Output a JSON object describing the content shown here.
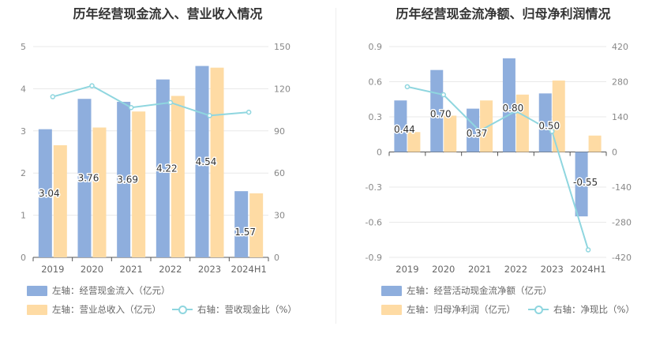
{
  "chart_data": [
    {
      "type": "bar",
      "title": "历年经营现金流入、营业收入情况",
      "categories": [
        "2019",
        "2020",
        "2021",
        "2022",
        "2023",
        "2024H1"
      ],
      "left_axis": {
        "min": 0,
        "max": 5,
        "ticks": [
          "0",
          "1",
          "2",
          "3",
          "4",
          "5"
        ]
      },
      "right_axis": {
        "min": 0,
        "max": 150,
        "ticks": [
          "0",
          "30",
          "60",
          "90",
          "120",
          "150"
        ]
      },
      "series": [
        {
          "name": "左轴：经营现金流入（亿元）",
          "axis": "left",
          "kind": "bar",
          "color": "#8eaedd",
          "values": [
            3.04,
            3.76,
            3.69,
            4.22,
            4.54,
            1.57
          ],
          "labels": [
            "3.04",
            "3.76",
            "3.69",
            "4.22",
            "4.54",
            "1.57"
          ]
        },
        {
          "name": "左轴：营业总收入（亿元）",
          "axis": "left",
          "kind": "bar",
          "color": "#fedba4",
          "values": [
            2.66,
            3.08,
            3.46,
            3.83,
            4.5,
            1.52
          ]
        },
        {
          "name": "右轴：营收现金比（%）",
          "axis": "right",
          "kind": "line",
          "color": "#8fd6df",
          "values": [
            114.3,
            122.1,
            106.6,
            110.2,
            100.9,
            103.3
          ]
        }
      ]
    },
    {
      "type": "bar",
      "title": "历年经营现金流净额、归母净利润情况",
      "categories": [
        "2019",
        "2020",
        "2021",
        "2022",
        "2023",
        "2024H1"
      ],
      "left_axis": {
        "min": -0.9,
        "max": 0.9,
        "ticks": [
          "-0.9",
          "-0.6",
          "-0.3",
          "0",
          "0.3",
          "0.6",
          "0.9"
        ]
      },
      "right_axis": {
        "min": -420,
        "max": 420,
        "ticks": [
          "-420",
          "-280",
          "-140",
          "0",
          "140",
          "280",
          "420"
        ]
      },
      "series": [
        {
          "name": "左轴：经营活动现金流净额（亿元）",
          "axis": "left",
          "kind": "bar",
          "color": "#8eaedd",
          "values": [
            0.44,
            0.7,
            0.37,
            0.8,
            0.5,
            -0.55
          ],
          "labels": [
            "0.44",
            "0.70",
            "0.37",
            "0.80",
            "0.50",
            "-0.55"
          ]
        },
        {
          "name": "左轴：归母净利润（亿元）",
          "axis": "left",
          "kind": "bar",
          "color": "#fedba4",
          "values": [
            0.17,
            0.31,
            0.44,
            0.49,
            0.61,
            0.14
          ]
        },
        {
          "name": "右轴：净现比（%）",
          "axis": "right",
          "kind": "line",
          "color": "#8fd6df",
          "values": [
            260,
            228,
            84,
            163,
            82,
            -390
          ]
        }
      ]
    }
  ]
}
